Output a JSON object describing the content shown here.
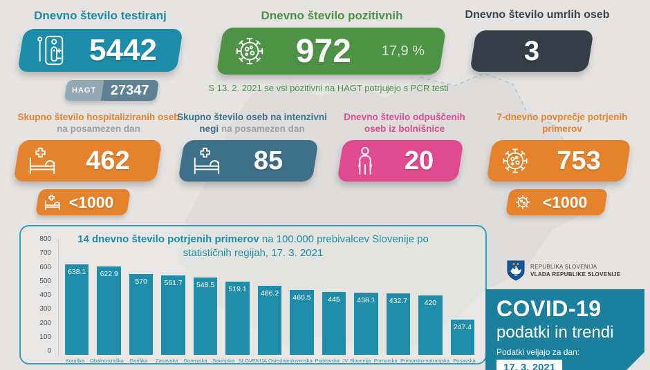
{
  "colors": {
    "bg": "#e5e4e2",
    "teal": "#1d8ca8",
    "green": "#4e9246",
    "dark": "#333e46",
    "orange": "#e5832d",
    "steel": "#3e6f88",
    "pink": "#e04a8e",
    "bar": "#1f8da9",
    "covid": "#1b7f9e",
    "hagt-light": "#93a9b5",
    "hagt-dark": "#5f8196"
  },
  "stats_row1": [
    {
      "title": "Dnevno število testiranj",
      "value": "5442",
      "hagt_label": "HAGT",
      "hagt_value": "27347"
    },
    {
      "title": "Dnevno število pozitivnih",
      "value": "972",
      "percent": "17,9 %",
      "note": "S 13. 2. 2021 se vsi pozitivni na HAGT potrjujejo s PCR testi"
    },
    {
      "title": "Dnevno število umrlih oseb",
      "value": "3"
    }
  ],
  "stats_row2": [
    {
      "title_bold": "Skupno število hospitaliziranih oseb",
      "title_rest": " na posamezen dan",
      "value": "462",
      "badge": "<1000"
    },
    {
      "title_bold": "Skupno število oseb na intenzivni negi",
      "title_rest": " na posamezen dan",
      "value": "85"
    },
    {
      "title_bold": "Dnevno število odpuščenih oseb iz bolnišnice",
      "title_rest": "",
      "value": "20"
    },
    {
      "title_bold": "7-dnevno povprečje potrjenih primerov",
      "title_rest": "",
      "value": "753",
      "badge": "<1000"
    }
  ],
  "chart_data": {
    "type": "bar",
    "title_bold": "14 dnevno število potrjenih primerov",
    "title_rest": " na 100.000 prebivalcev Slovenije po statističnih regijah, 17. 3. 2021",
    "categories": [
      "Koroška",
      "Obalno-kraška",
      "Goriška",
      "Zasavska",
      "Gorenjska",
      "Savinjska",
      "SLOVENIJA",
      "Osrednjeslovenska",
      "Podravska",
      "JV Slovenija",
      "Pomurska",
      "Primorsko-notranjska",
      "Posavska"
    ],
    "values": [
      638.1,
      622.9,
      570,
      561.7,
      548.5,
      519.1,
      486.2,
      460.5,
      445,
      438.1,
      432.7,
      420,
      247.4
    ],
    "value_labels": [
      "638.1",
      "622.9",
      "570",
      "561.7",
      "548.5",
      "519.1",
      "486.2",
      "460.5",
      "445",
      "438.1",
      "432.7",
      "420",
      "247.4"
    ],
    "ylabel": "",
    "xlabel": "",
    "ylim": [
      0,
      800
    ],
    "ytick_step": 100,
    "grid": false,
    "legend": false,
    "bar_color": "#1f8da9"
  },
  "footer": {
    "gov_line1": "REPUBLIKA SLOVENIJA",
    "gov_line2": "VLADA REPUBLIKE SLOVENIJE",
    "covid_title": "COVID-19",
    "covid_subtitle": "podatki in trendi",
    "date_label": "Podatki veljajo za dan:",
    "date_value": "17. 3. 2021"
  }
}
